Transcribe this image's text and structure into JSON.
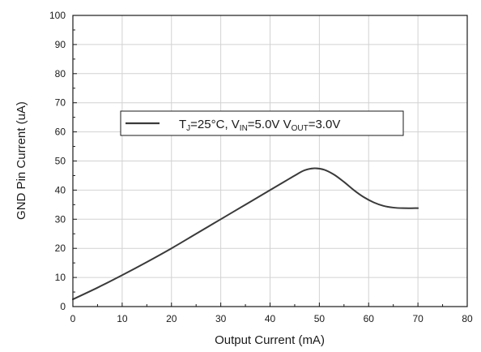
{
  "chart_data": {
    "type": "line",
    "xlabel": "Output Current (mA)",
    "ylabel": "GND Pin Current (uA)",
    "xlim": [
      0,
      80
    ],
    "ylim": [
      0,
      100
    ],
    "xticks": [
      0,
      10,
      20,
      30,
      40,
      50,
      60,
      70,
      80
    ],
    "yticks": [
      0,
      10,
      20,
      30,
      40,
      50,
      60,
      70,
      80,
      90,
      100
    ],
    "grid": true,
    "legend_position": "upper-center",
    "legend": {
      "label": "TJ=25°C, VIN=5.0V VOUT=3.0V",
      "parts": [
        {
          "text": "T",
          "sub": false
        },
        {
          "text": "J",
          "sub": true
        },
        {
          "text": "=25°C, V",
          "sub": false
        },
        {
          "text": "IN",
          "sub": true
        },
        {
          "text": "=5.0V V",
          "sub": false
        },
        {
          "text": "OUT",
          "sub": true
        },
        {
          "text": "=3.0V",
          "sub": false
        }
      ]
    },
    "series": [
      {
        "color": "#3a3a3a",
        "x": [
          0,
          5,
          10,
          15,
          20,
          25,
          30,
          35,
          40,
          43,
          45,
          47,
          49,
          51,
          53,
          55,
          57,
          59,
          61,
          63,
          65,
          67,
          70
        ],
        "y": [
          2.5,
          6.5,
          10.8,
          15.3,
          20.0,
          25.0,
          30.0,
          35.0,
          40.0,
          43.0,
          45.0,
          46.8,
          47.5,
          47.0,
          45.3,
          42.8,
          40.0,
          37.6,
          35.8,
          34.6,
          34.0,
          33.8,
          33.8
        ]
      }
    ]
  }
}
